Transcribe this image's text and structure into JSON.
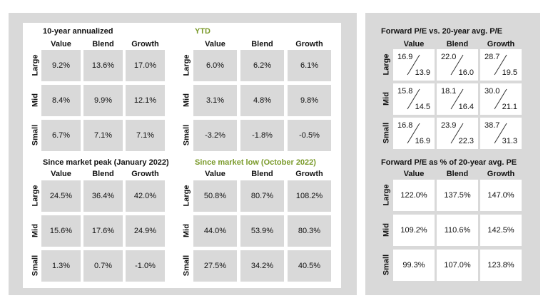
{
  "colors": {
    "panel": "#d9d9d9",
    "green_title": "#7a9a2a"
  },
  "left": {
    "ten_year": {
      "title": "10-year annualized",
      "cols": [
        "Value",
        "Blend",
        "Growth"
      ],
      "rows": [
        "Large",
        "Mid",
        "Small"
      ],
      "values": [
        [
          "9.2%",
          "13.6%",
          "17.0%"
        ],
        [
          "8.4%",
          "9.9%",
          "12.1%"
        ],
        [
          "6.7%",
          "7.1%",
          "7.1%"
        ]
      ]
    },
    "ytd": {
      "title": "YTD",
      "cols": [
        "Value",
        "Blend",
        "Growth"
      ],
      "rows": [
        "Large",
        "Mid",
        "Small"
      ],
      "values": [
        [
          "6.0%",
          "6.2%",
          "6.1%"
        ],
        [
          "3.1%",
          "4.8%",
          "9.8%"
        ],
        [
          "-3.2%",
          "-1.8%",
          "-0.5%"
        ]
      ]
    },
    "peak": {
      "title": "Since market peak (January 2022)",
      "cols": [
        "Value",
        "Blend",
        "Growth"
      ],
      "rows": [
        "Large",
        "Mid",
        "Small"
      ],
      "values": [
        [
          "24.5%",
          "36.4%",
          "42.0%"
        ],
        [
          "15.6%",
          "17.6%",
          "24.9%"
        ],
        [
          "1.3%",
          "0.7%",
          "-1.0%"
        ]
      ]
    },
    "low": {
      "title": "Since market low (October 2022)",
      "cols": [
        "Value",
        "Blend",
        "Growth"
      ],
      "rows": [
        "Large",
        "Mid",
        "Small"
      ],
      "values": [
        [
          "50.8%",
          "80.7%",
          "108.2%"
        ],
        [
          "44.0%",
          "53.9%",
          "80.3%"
        ],
        [
          "27.5%",
          "34.2%",
          "40.5%"
        ]
      ]
    }
  },
  "right": {
    "pe": {
      "title": "Forward P/E vs. 20-year avg. P/E",
      "cols": [
        "Value",
        "Blend",
        "Growth"
      ],
      "rows": [
        "Large",
        "Mid",
        "Small"
      ],
      "current": [
        [
          "16.9",
          "22.0",
          "28.7"
        ],
        [
          "15.8",
          "18.1",
          "30.0"
        ],
        [
          "16.8",
          "23.9",
          "38.7"
        ]
      ],
      "average": [
        [
          "13.9",
          "16.0",
          "19.5"
        ],
        [
          "14.5",
          "16.4",
          "21.1"
        ],
        [
          "16.9",
          "22.3",
          "31.3"
        ]
      ]
    },
    "pct": {
      "title": "Forward P/E as % of 20-year avg. PE",
      "cols": [
        "Value",
        "Blend",
        "Growth"
      ],
      "rows": [
        "Large",
        "Mid",
        "Small"
      ],
      "values": [
        [
          "122.0%",
          "137.5%",
          "147.0%"
        ],
        [
          "109.2%",
          "110.6%",
          "142.5%"
        ],
        [
          "99.3%",
          "107.0%",
          "123.8%"
        ]
      ]
    }
  }
}
